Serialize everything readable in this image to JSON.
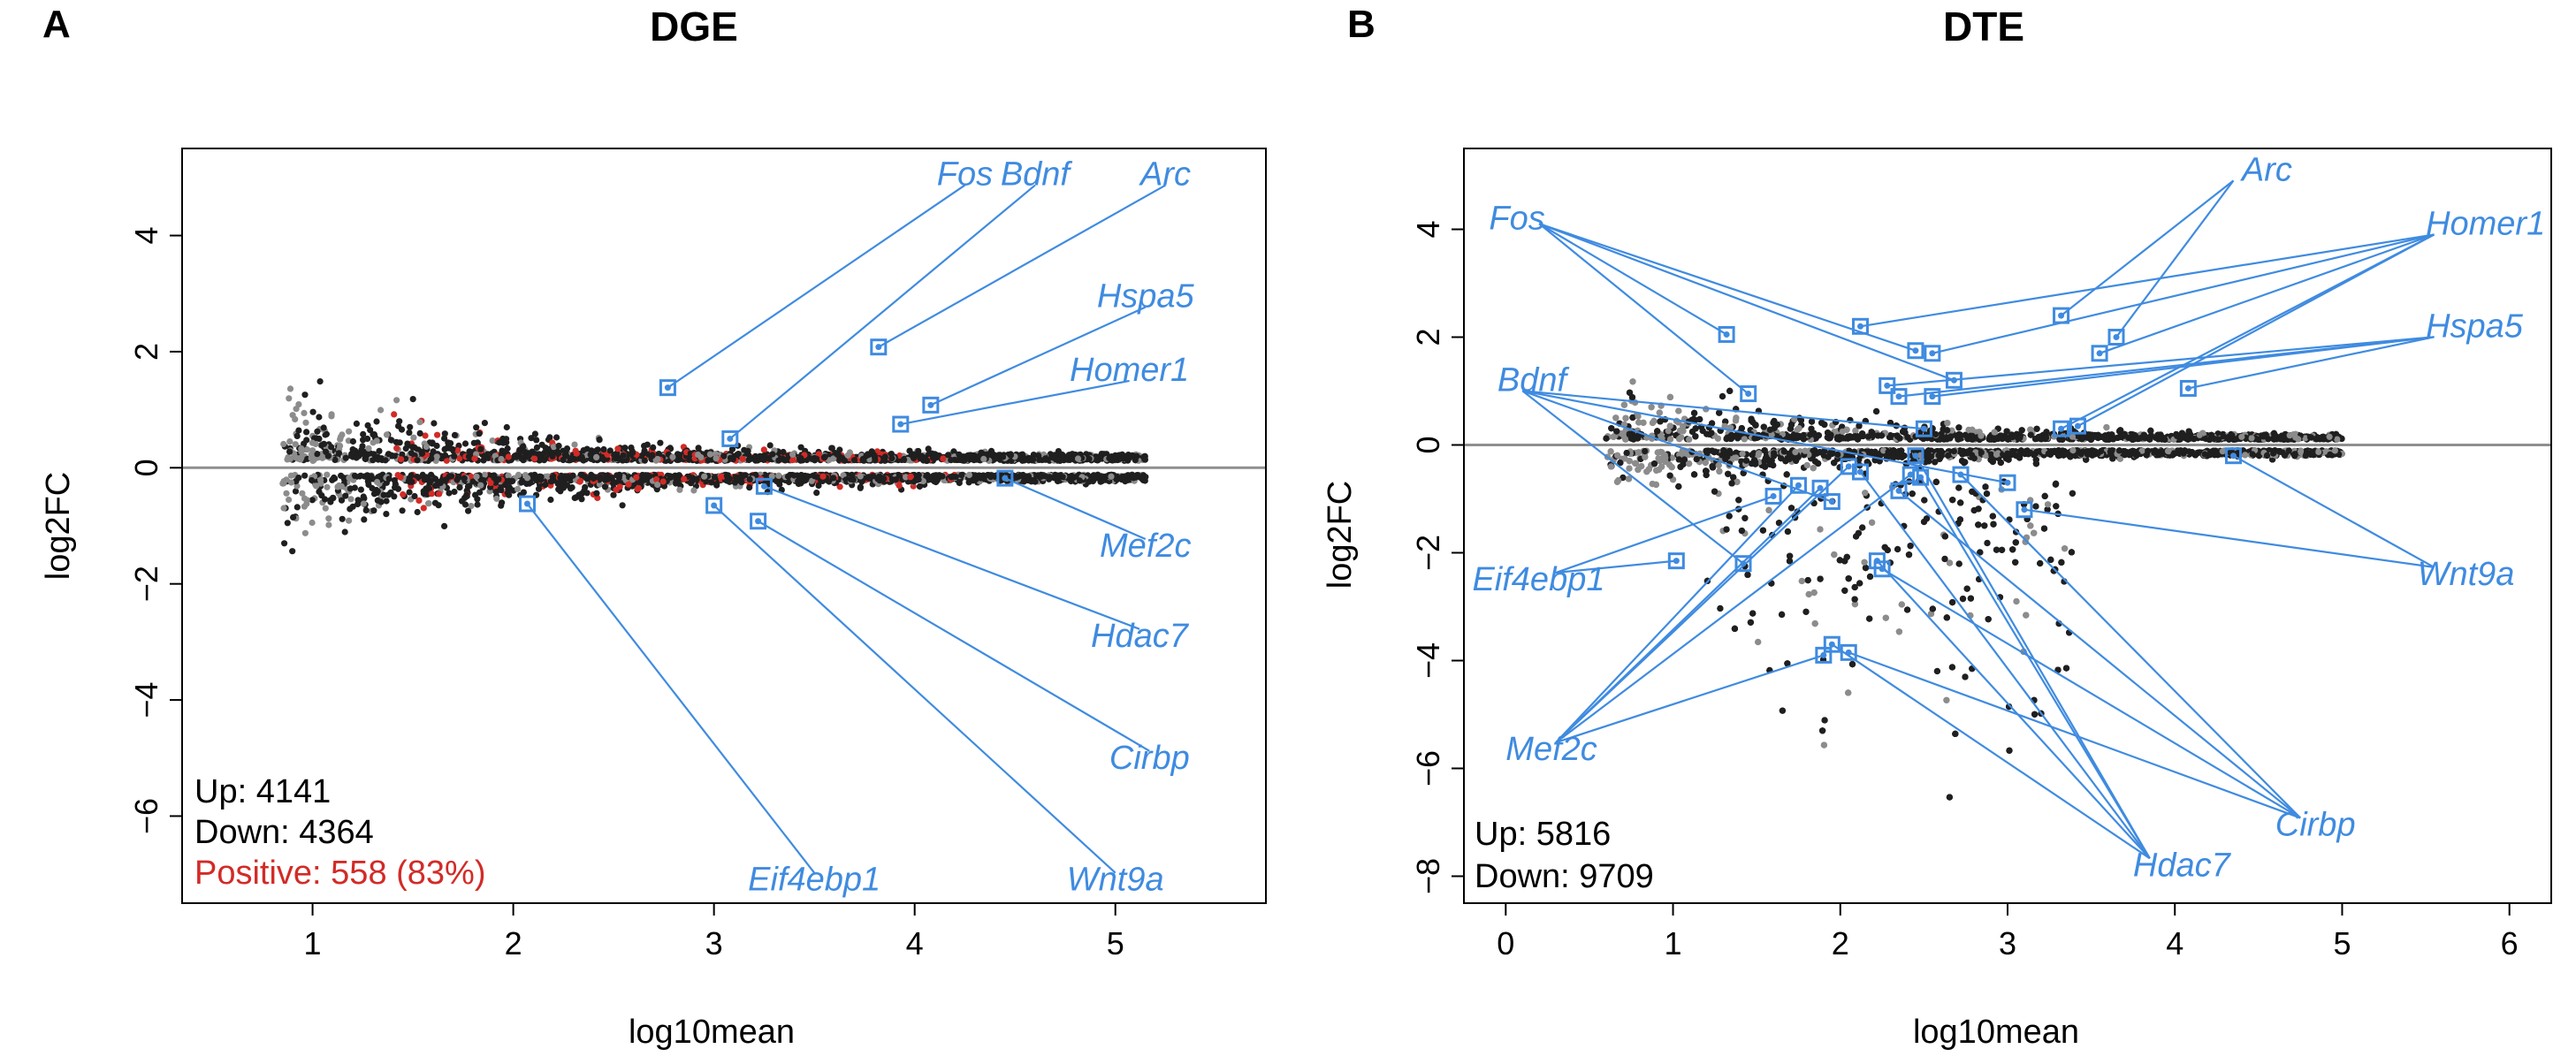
{
  "colors": {
    "sig_point": "#1f1f1f",
    "nonsig_point": "#8c8c8c",
    "positive_point": "#d22b27",
    "highlight": "#3f8be0",
    "zero_line": "#8f8f8f"
  },
  "chart_data": [
    {
      "type": "scatter",
      "panel": "A",
      "title": "DGE",
      "xlabel": "log10mean",
      "ylabel": "log2FC",
      "xlim": [
        0.35,
        5.75
      ],
      "ylim": [
        -7.5,
        5.5
      ],
      "xticks": [
        1,
        2,
        3,
        4,
        5
      ],
      "yticks": [
        -6,
        -4,
        -2,
        0,
        2,
        4
      ],
      "grid": false,
      "reference_line_y": 0,
      "stats": {
        "up": "Up: 4141",
        "down": "Down: 4364",
        "positive": "Positive: 558 (83%)"
      },
      "point_groups": [
        {
          "color": "#1f1f1f",
          "description": "significant"
        },
        {
          "color": "#8c8c8c",
          "description": "not significant"
        },
        {
          "color": "#d22b27",
          "description": "positive"
        }
      ],
      "highlighted_genes": [
        {
          "gene": "Fos",
          "x": 2.77,
          "y": 1.38,
          "label_x": 4.25,
          "label_y": 5.05
        },
        {
          "gene": "Bdnf",
          "x": 3.08,
          "y": 0.5,
          "label_x": 4.6,
          "label_y": 5.05
        },
        {
          "gene": "Arc",
          "x": 3.82,
          "y": 2.08,
          "label_x": 5.25,
          "label_y": 5.05
        },
        {
          "gene": "Hspa5",
          "x": 4.08,
          "y": 1.08,
          "label_x": 5.15,
          "label_y": 2.95
        },
        {
          "gene": "Homer1",
          "x": 3.93,
          "y": 0.75,
          "label_x": 5.07,
          "label_y": 1.68
        },
        {
          "gene": "Mef2c",
          "x": 4.45,
          "y": -0.18,
          "label_x": 5.15,
          "label_y": -1.35
        },
        {
          "gene": "Hdac7",
          "x": 3.25,
          "y": -0.32,
          "label_x": 5.12,
          "label_y": -2.9
        },
        {
          "gene": "Cirbp",
          "x": 3.22,
          "y": -0.92,
          "label_x": 5.17,
          "label_y": -5.0
        },
        {
          "gene": "Wnt9a",
          "x": 3.0,
          "y": -0.65,
          "label_x": 5.0,
          "label_y": -7.1
        },
        {
          "gene": "Eif4ebp1",
          "x": 2.07,
          "y": -0.62,
          "label_x": 3.5,
          "label_y": -7.1
        }
      ]
    },
    {
      "type": "scatter",
      "panel": "B",
      "title": "DTE",
      "xlabel": "log10mean",
      "ylabel": "log2FC",
      "xlim": [
        -0.25,
        6.25
      ],
      "ylim": [
        -8.5,
        5.5
      ],
      "xticks": [
        0,
        1,
        2,
        3,
        4,
        5,
        6
      ],
      "yticks": [
        -8,
        -6,
        -4,
        -2,
        0,
        2,
        4
      ],
      "grid": false,
      "reference_line_y": 0,
      "stats": {
        "up": "Up: 5816",
        "down": "Down: 9709"
      },
      "point_groups": [
        {
          "color": "#1f1f1f",
          "description": "significant"
        },
        {
          "color": "#8c8c8c",
          "description": "not significant"
        }
      ],
      "highlighted_genes": [
        {
          "gene": "Fos",
          "x": 1.32,
          "y": 2.05,
          "label_x": 0.2,
          "label_y": 4.3
        },
        {
          "gene": "Fos",
          "x": 1.45,
          "y": 0.95,
          "label_x": 0.2,
          "label_y": 4.3
        },
        {
          "gene": "Fos",
          "x": 2.45,
          "y": 1.75,
          "label_x": 0.2,
          "label_y": 4.3
        },
        {
          "gene": "Fos",
          "x": 2.68,
          "y": 1.2,
          "label_x": 0.2,
          "label_y": 4.3
        },
        {
          "gene": "Arc",
          "x": 3.32,
          "y": 2.4,
          "label_x": 4.35,
          "label_y": 5.1
        },
        {
          "gene": "Arc",
          "x": 3.65,
          "y": 2.0,
          "label_x": 4.35,
          "label_y": 5.1
        },
        {
          "gene": "Homer1",
          "x": 2.12,
          "y": 2.2,
          "label_x": 5.55,
          "label_y": 4.1
        },
        {
          "gene": "Homer1",
          "x": 2.55,
          "y": 1.7,
          "label_x": 5.55,
          "label_y": 4.1
        },
        {
          "gene": "Homer1",
          "x": 3.55,
          "y": 1.7,
          "label_x": 5.55,
          "label_y": 4.1
        },
        {
          "gene": "Homer1",
          "x": 3.32,
          "y": 0.3,
          "label_x": 5.55,
          "label_y": 4.1
        },
        {
          "gene": "Homer1",
          "x": 3.42,
          "y": 0.35,
          "label_x": 5.55,
          "label_y": 4.1
        },
        {
          "gene": "Hspa5",
          "x": 2.28,
          "y": 1.1,
          "label_x": 5.55,
          "label_y": 2.2
        },
        {
          "gene": "Hspa5",
          "x": 2.35,
          "y": 0.9,
          "label_x": 5.55,
          "label_y": 2.2
        },
        {
          "gene": "Hspa5",
          "x": 2.55,
          "y": 0.9,
          "label_x": 5.55,
          "label_y": 2.2
        },
        {
          "gene": "Hspa5",
          "x": 4.08,
          "y": 1.05,
          "label_x": 5.55,
          "label_y": 2.2
        },
        {
          "gene": "Bdnf",
          "x": 1.95,
          "y": -1.05,
          "label_x": 0.1,
          "label_y": 1.2
        },
        {
          "gene": "Bdnf",
          "x": 1.42,
          "y": -2.2,
          "label_x": 0.1,
          "label_y": 1.2
        },
        {
          "gene": "Bdnf",
          "x": 2.5,
          "y": 0.3,
          "label_x": 0.1,
          "label_y": 1.2
        },
        {
          "gene": "Bdnf",
          "x": 3.0,
          "y": -0.7,
          "label_x": 0.1,
          "label_y": 1.2
        },
        {
          "gene": "Wnt9a",
          "x": 3.1,
          "y": -1.2,
          "label_x": 5.55,
          "label_y": -2.4
        },
        {
          "gene": "Wnt9a",
          "x": 4.35,
          "y": -0.2,
          "label_x": 5.55,
          "label_y": -2.4
        },
        {
          "gene": "Eif4ebp1",
          "x": 1.6,
          "y": -0.95,
          "label_x": 0.3,
          "label_y": -2.5
        },
        {
          "gene": "Eif4ebp1",
          "x": 1.02,
          "y": -2.15,
          "label_x": 0.3,
          "label_y": -2.5
        },
        {
          "gene": "Mef2c",
          "x": 1.75,
          "y": -0.75,
          "label_x": 0.3,
          "label_y": -5.65
        },
        {
          "gene": "Mef2c",
          "x": 1.88,
          "y": -0.8,
          "label_x": 0.3,
          "label_y": -5.65
        },
        {
          "gene": "Mef2c",
          "x": 2.05,
          "y": -0.4,
          "label_x": 0.3,
          "label_y": -5.65
        },
        {
          "gene": "Mef2c",
          "x": 2.42,
          "y": -0.55,
          "label_x": 0.3,
          "label_y": -5.65
        },
        {
          "gene": "Mef2c",
          "x": 1.9,
          "y": -3.9,
          "label_x": 0.3,
          "label_y": -5.65
        },
        {
          "gene": "Cirbp",
          "x": 2.35,
          "y": -0.85,
          "label_x": 4.75,
          "label_y": -7.05
        },
        {
          "gene": "Cirbp",
          "x": 2.72,
          "y": -0.55,
          "label_x": 4.75,
          "label_y": -7.05
        },
        {
          "gene": "Cirbp",
          "x": 2.25,
          "y": -2.3,
          "label_x": 4.75,
          "label_y": -7.05
        },
        {
          "gene": "Cirbp",
          "x": 2.05,
          "y": -3.85,
          "label_x": 4.75,
          "label_y": -7.05
        },
        {
          "gene": "Hdac7",
          "x": 2.12,
          "y": -0.5,
          "label_x": 3.85,
          "label_y": -7.8
        },
        {
          "gene": "Hdac7",
          "x": 2.45,
          "y": -0.2,
          "label_x": 3.85,
          "label_y": -7.8
        },
        {
          "gene": "Hdac7",
          "x": 2.48,
          "y": -0.6,
          "label_x": 3.85,
          "label_y": -7.8
        },
        {
          "gene": "Hdac7",
          "x": 2.22,
          "y": -2.15,
          "label_x": 3.85,
          "label_y": -7.8
        },
        {
          "gene": "Hdac7",
          "x": 1.95,
          "y": -3.7,
          "label_x": 3.85,
          "label_y": -7.8
        }
      ],
      "gene_labels": [
        {
          "gene": "Fos",
          "label_x": -0.1,
          "label_y": 4.2,
          "anchor": "start"
        },
        {
          "gene": "Arc",
          "label_x": 4.4,
          "label_y": 5.1,
          "anchor": "start"
        },
        {
          "gene": "Homer1",
          "label_x": 5.5,
          "label_y": 4.1,
          "anchor": "start"
        },
        {
          "gene": "Hspa5",
          "label_x": 5.5,
          "label_y": 2.2,
          "anchor": "start"
        },
        {
          "gene": "Bdnf",
          "label_x": -0.05,
          "label_y": 1.2,
          "anchor": "start"
        },
        {
          "gene": "Wnt9a",
          "label_x": 5.45,
          "label_y": -2.4,
          "anchor": "start"
        },
        {
          "gene": "Eif4ebp1",
          "label_x": -0.2,
          "label_y": -2.5,
          "anchor": "start"
        },
        {
          "gene": "Mef2c",
          "label_x": 0.0,
          "label_y": -5.65,
          "anchor": "start"
        },
        {
          "gene": "Cirbp",
          "label_x": 4.6,
          "label_y": -7.05,
          "anchor": "start"
        },
        {
          "gene": "Hdac7",
          "label_x": 3.75,
          "label_y": -7.8,
          "anchor": "start"
        }
      ]
    }
  ]
}
